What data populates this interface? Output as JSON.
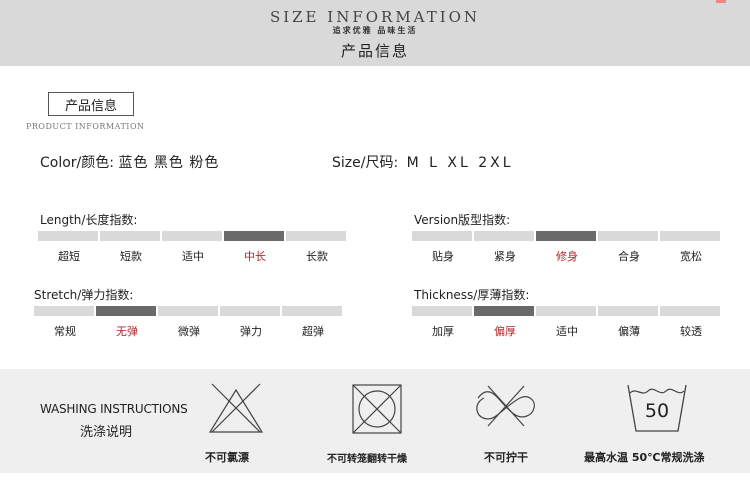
{
  "header": {
    "title_en": "SIZE INFORMATION",
    "slogan": "追求优雅 品味生活",
    "title_zh": "产品信息"
  },
  "section": {
    "title_zh": "产品信息",
    "title_en": "PRODUCT INFORMATION"
  },
  "color": {
    "label": "Color/颜色:",
    "values": "蓝色 黑色 粉色"
  },
  "size": {
    "label": "Size/尺码:",
    "values": "M L XL 2XL"
  },
  "scales": {
    "length": {
      "label": "Length/长度指数:",
      "options": [
        "超短",
        "短款",
        "适中",
        "中长",
        "长款"
      ],
      "selected": 3
    },
    "version": {
      "label": "Version版型指数:",
      "options": [
        "贴身",
        "紧身",
        "修身",
        "合身",
        "宽松"
      ],
      "selected": 2
    },
    "stretch": {
      "label": "Stretch/弹力指数:",
      "options": [
        "常规",
        "无弹",
        "微弹",
        "弹力",
        "超弹"
      ],
      "selected": 1
    },
    "thickness": {
      "label": "Thickness/厚薄指数:",
      "options": [
        "加厚",
        "偏厚",
        "适中",
        "偏薄",
        "较透"
      ],
      "selected": 1
    }
  },
  "washing": {
    "title_en": "WASHING INSTRUCTIONS",
    "title_zh": "洗涤说明",
    "temp_number": "50",
    "captions": [
      "不可氯漂",
      "不可转笼翻转干燥",
      "不可拧干",
      "最高水温 50℃常规洗涤"
    ],
    "icons": [
      "no-bleach-icon",
      "no-tumble-dry-icon",
      "no-wring-icon",
      "wash-50-icon"
    ]
  },
  "colors": {
    "active_text": "#b0272e",
    "active_segment": "#6a6a6a",
    "inactive_segment": "#d9d9d9",
    "band": "#d9d9d9"
  }
}
